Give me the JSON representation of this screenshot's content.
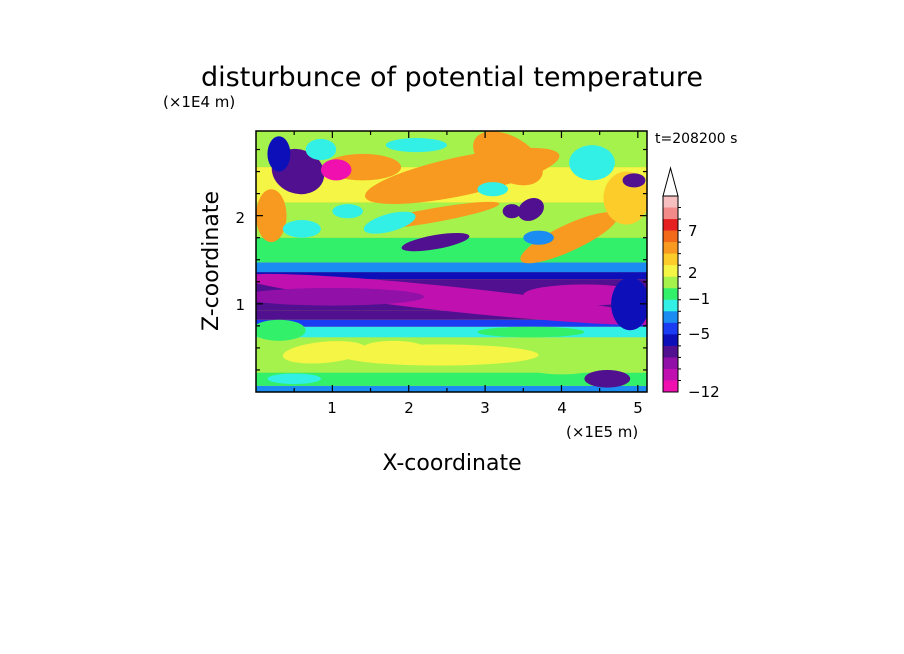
{
  "chart_data": {
    "type": "heatmap",
    "title": "disturbunce of potential temperature",
    "xlabel": "X-coordinate",
    "ylabel": "Z-coordinate",
    "x_unit": "(×1E5 m)",
    "y_unit": "(×1E4 m)",
    "time_label": "t=208200 s",
    "xlim": [
      0,
      5.12
    ],
    "ylim": [
      0,
      2.96
    ],
    "xticks": [
      "1",
      "2",
      "3",
      "4",
      "5"
    ],
    "yticks": [
      "1",
      "2"
    ],
    "colorbar": {
      "labels": [
        "7",
        "2",
        "−1",
        "−5",
        "−12"
      ],
      "levels": [
        10,
        9,
        8,
        7,
        6,
        5,
        4,
        3,
        2,
        1,
        0,
        -1,
        -2,
        -3,
        -4,
        -5,
        -6,
        -7,
        -8,
        -10,
        -12
      ],
      "colors": [
        "#f7bfbf",
        "#f28a8a",
        "#e62020",
        "#f26a1a",
        "#f79a1f",
        "#fccc2b",
        "#f5f545",
        "#a6f24d",
        "#33f06b",
        "#33f0e6",
        "#1a8cf2",
        "#1a3cf2",
        "#0d10b8",
        "#501090",
        "#9010a8",
        "#c010b0",
        "#f010b0"
      ],
      "extend_top": true
    },
    "bands": [
      {
        "z": [
          0.0,
          0.07
        ],
        "level": 0
      },
      {
        "z": [
          0.07,
          0.22
        ],
        "level": 2
      },
      {
        "z": [
          0.22,
          0.62
        ],
        "level": 3
      },
      {
        "z": [
          0.62,
          0.74
        ],
        "level": 1
      },
      {
        "z": [
          0.74,
          0.82
        ],
        "level": -1
      },
      {
        "z": [
          0.82,
          0.92
        ],
        "level": -3
      },
      {
        "z": [
          0.92,
          1.28
        ],
        "level": -3
      },
      {
        "z": [
          1.28,
          1.36
        ],
        "level": -2
      },
      {
        "z": [
          1.36,
          1.47
        ],
        "level": 0
      },
      {
        "z": [
          1.47,
          1.75
        ],
        "level": 2
      },
      {
        "z": [
          1.75,
          2.15
        ],
        "level": 3
      },
      {
        "z": [
          2.15,
          2.55
        ],
        "level": 4
      },
      {
        "z": [
          2.55,
          2.96
        ],
        "level": 3
      }
    ]
  }
}
